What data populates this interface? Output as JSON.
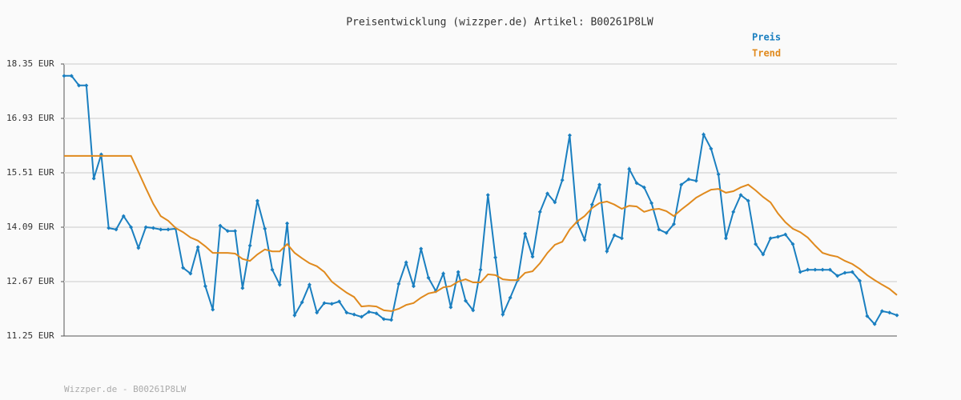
{
  "chart_data": {
    "type": "line",
    "title": "Preisentwicklung (wizzper.de) Artikel: B00261P8LW",
    "source": "Wizzper.de - B00261P8LW",
    "ylim": [
      11.25,
      18.35
    ],
    "yticks": [
      {
        "value": 11.25,
        "label": "11.25 EUR"
      },
      {
        "value": 12.67,
        "label": "12.67 EUR"
      },
      {
        "value": 14.09,
        "label": "14.09 EUR"
      },
      {
        "value": 15.51,
        "label": "15.51 EUR"
      },
      {
        "value": 16.93,
        "label": "16.93 EUR"
      },
      {
        "value": 18.35,
        "label": "18.35 EUR"
      }
    ],
    "grid": true,
    "series": [
      {
        "name": "Preis",
        "color": "#1a7fc0",
        "markers": true,
        "values": [
          18.04,
          18.04,
          17.79,
          17.79,
          15.36,
          15.99,
          14.07,
          14.03,
          14.38,
          14.09,
          13.55,
          14.09,
          14.07,
          14.03,
          14.03,
          14.05,
          13.03,
          12.88,
          13.57,
          12.55,
          11.94,
          14.13,
          13.99,
          13.99,
          12.5,
          13.61,
          14.78,
          14.05,
          12.98,
          12.59,
          14.19,
          11.79,
          12.13,
          12.59,
          11.86,
          12.11,
          12.09,
          12.15,
          11.86,
          11.81,
          11.75,
          11.88,
          11.84,
          11.69,
          11.67,
          12.61,
          13.17,
          12.55,
          13.53,
          12.77,
          12.42,
          12.88,
          12.0,
          12.92,
          12.17,
          11.92,
          12.98,
          14.93,
          13.3,
          11.81,
          12.25,
          12.71,
          13.92,
          13.32,
          14.49,
          14.97,
          14.74,
          15.32,
          16.49,
          14.22,
          13.76,
          14.68,
          15.2,
          13.46,
          13.88,
          13.8,
          15.61,
          15.24,
          15.13,
          14.72,
          14.03,
          13.94,
          14.17,
          15.2,
          15.34,
          15.3,
          16.51,
          16.14,
          15.47,
          13.8,
          14.49,
          14.93,
          14.78,
          13.65,
          13.38,
          13.8,
          13.84,
          13.9,
          13.65,
          12.92,
          12.98,
          12.98,
          12.98,
          12.98,
          12.82,
          12.9,
          12.92,
          12.69,
          11.77,
          11.56,
          11.9,
          11.86,
          11.79
        ]
      },
      {
        "name": "Trend",
        "color": "#e08a1e",
        "markers": false,
        "values": [
          15.95,
          15.95,
          15.95,
          15.95,
          15.95,
          15.95,
          15.95,
          15.95,
          15.95,
          15.95,
          15.53,
          15.11,
          14.7,
          14.38,
          14.26,
          14.07,
          13.96,
          13.82,
          13.74,
          13.59,
          13.42,
          13.42,
          13.42,
          13.4,
          13.26,
          13.21,
          13.38,
          13.51,
          13.46,
          13.46,
          13.65,
          13.42,
          13.28,
          13.15,
          13.07,
          12.92,
          12.67,
          12.52,
          12.38,
          12.27,
          12.02,
          12.04,
          12.02,
          11.92,
          11.9,
          11.96,
          12.06,
          12.11,
          12.25,
          12.36,
          12.4,
          12.52,
          12.55,
          12.67,
          12.73,
          12.65,
          12.65,
          12.86,
          12.84,
          12.73,
          12.71,
          12.71,
          12.9,
          12.94,
          13.15,
          13.42,
          13.63,
          13.71,
          14.03,
          14.24,
          14.38,
          14.59,
          14.72,
          14.76,
          14.68,
          14.57,
          14.65,
          14.63,
          14.49,
          14.55,
          14.57,
          14.51,
          14.38,
          14.55,
          14.7,
          14.86,
          14.97,
          15.07,
          15.09,
          14.99,
          15.03,
          15.13,
          15.2,
          15.05,
          14.88,
          14.74,
          14.45,
          14.22,
          14.05,
          13.96,
          13.82,
          13.61,
          13.42,
          13.36,
          13.32,
          13.21,
          13.13,
          13.0,
          12.84,
          12.71,
          12.59,
          12.48,
          12.32
        ]
      }
    ]
  }
}
